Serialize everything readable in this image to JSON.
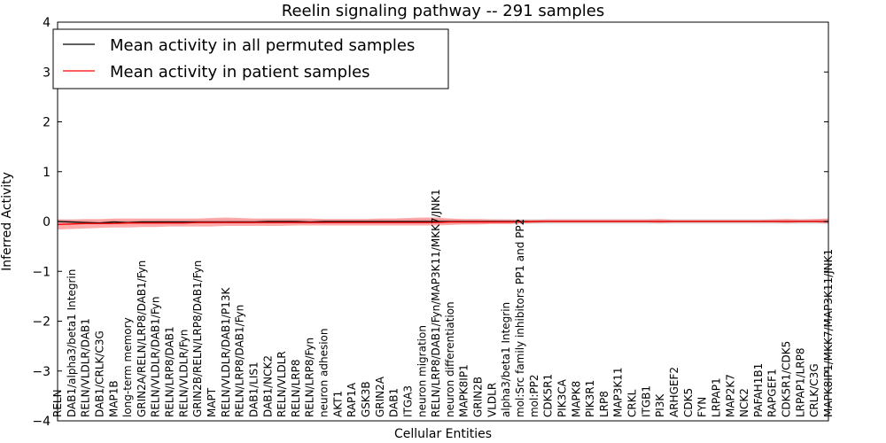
{
  "chart_data": {
    "type": "line",
    "title": "Reelin signaling pathway -- 291 samples",
    "xlabel": "Cellular Entities",
    "ylabel": "Inferred Activity",
    "ylim": [
      -4,
      4
    ],
    "yticks": [
      -4,
      -3,
      -2,
      -1,
      0,
      1,
      2,
      3,
      4
    ],
    "ytick_labels": [
      "−4",
      "−3",
      "−2",
      "−1",
      "0",
      "1",
      "2",
      "3",
      "4"
    ],
    "legend_position": "top-left",
    "categories": [
      "RELN",
      "DAB1/alpha3/beta1 Integrin",
      "RELN/VLDLR/DAB1",
      "DAB1/CRLK/C3G",
      "MAP1B",
      "long-term memory",
      "GRIN2A/RELN/LRP8/DAB1/Fyn",
      "RELN/VLDLR/DAB1/Fyn",
      "RELN/LRP8/DAB1",
      "RELN/VLDLR/Fyn",
      "GRIN2B/RELN/LRP8/DAB1/Fyn",
      "MAPT",
      "RELN/VLDLR/DAB1/P13K",
      "RELN/LRP8/DAB1/Fyn",
      "DAB1/LIS1",
      "DAB1/NCK2",
      "RELN/VLDLR",
      "RELN/LRP8",
      "RELN/LRP8/Fyn",
      "neuron adhesion",
      "AKT1",
      "RAP1A",
      "GSK3B",
      "GRIN2A",
      "DAB1",
      "ITGA3",
      "neuron migration",
      "RELN/LRP8/DAB1/Fyn/MAP3K11/MKK7/JNK1",
      "neuron differentiation",
      "MAPK8IP1",
      "GRIN2B",
      "VLDLR",
      "alpha3/beta1 Integrin",
      "mol:Src family inhibitors PP1 and PP2",
      "mol:PP2",
      "CDK5R1",
      "PIK3CA",
      "MAPK8",
      "PIK3R1",
      "LRP8",
      "MAP3K11",
      "CRKL",
      "ITGB1",
      "PI3K",
      "ARHGEF2",
      "CDK5",
      "FYN",
      "LRPAP1",
      "MAP2K7",
      "NCK2",
      "PAFAH1B1",
      "RAPGEF1",
      "CDK5R1/CDK5",
      "LRPAP1/LRP8",
      "CRLK/C3G",
      "MAPK8IP1/MKK7/MAP3K11/JNK1"
    ],
    "series": [
      {
        "name": "Mean activity in all permuted samples",
        "color": "#000000",
        "values": [
          0.0,
          -0.01,
          -0.02,
          -0.03,
          -0.01,
          -0.02,
          -0.01,
          -0.01,
          -0.01,
          -0.01,
          -0.01,
          -0.01,
          -0.01,
          -0.01,
          -0.01,
          0.0,
          0.0,
          0.0,
          -0.01,
          0.0,
          0.0,
          0.0,
          0.0,
          0.0,
          0.0,
          0.0,
          0.0,
          0.0,
          0.0,
          0.0,
          0.0,
          0.0,
          0.0,
          0.0,
          0.0,
          0.0,
          0.0,
          0.0,
          0.0,
          0.0,
          0.0,
          0.0,
          0.0,
          0.0,
          0.0,
          0.0,
          0.0,
          0.0,
          0.0,
          0.0,
          0.0,
          0.0,
          0.0,
          0.0,
          0.0,
          0.0
        ],
        "band_low": [
          -0.05,
          -0.05,
          -0.06,
          -0.06,
          -0.05,
          -0.05,
          -0.05,
          -0.05,
          -0.05,
          -0.05,
          -0.05,
          -0.05,
          -0.05,
          -0.05,
          -0.05,
          -0.05,
          -0.05,
          -0.05,
          -0.05,
          -0.05,
          -0.05,
          -0.05,
          -0.05,
          -0.05,
          -0.05,
          -0.05,
          -0.05,
          -0.05,
          -0.05,
          -0.05,
          -0.05,
          -0.05,
          -0.05,
          -0.05,
          -0.05,
          -0.05,
          -0.05,
          -0.05,
          -0.05,
          -0.05,
          -0.05,
          -0.05,
          -0.05,
          -0.05,
          -0.05,
          -0.05,
          -0.05,
          -0.05,
          -0.05,
          -0.05,
          -0.05,
          -0.05,
          -0.05,
          -0.05,
          -0.05,
          -0.05
        ],
        "band_high": [
          0.05,
          0.04,
          0.03,
          0.02,
          0.04,
          0.03,
          0.04,
          0.04,
          0.04,
          0.04,
          0.04,
          0.04,
          0.04,
          0.04,
          0.04,
          0.05,
          0.05,
          0.05,
          0.04,
          0.05,
          0.05,
          0.05,
          0.05,
          0.05,
          0.05,
          0.05,
          0.05,
          0.05,
          0.05,
          0.05,
          0.05,
          0.05,
          0.05,
          0.05,
          0.05,
          0.05,
          0.05,
          0.05,
          0.05,
          0.05,
          0.05,
          0.05,
          0.05,
          0.05,
          0.05,
          0.05,
          0.05,
          0.05,
          0.05,
          0.05,
          0.05,
          0.05,
          0.05,
          0.05,
          0.05,
          0.05
        ]
      },
      {
        "name": "Mean activity in patient samples",
        "color": "#ff0000",
        "values": [
          -0.06,
          -0.05,
          -0.04,
          -0.04,
          -0.04,
          -0.03,
          -0.03,
          -0.03,
          -0.03,
          -0.03,
          -0.02,
          -0.02,
          -0.02,
          -0.02,
          -0.02,
          -0.02,
          -0.02,
          -0.02,
          -0.02,
          -0.02,
          -0.02,
          -0.02,
          -0.02,
          -0.02,
          -0.02,
          -0.02,
          -0.02,
          -0.02,
          -0.01,
          -0.01,
          -0.01,
          -0.01,
          -0.01,
          -0.01,
          0.0,
          0.0,
          0.0,
          0.0,
          0.0,
          0.0,
          0.0,
          0.0,
          0.0,
          0.0,
          0.0,
          0.0,
          0.0,
          0.0,
          0.0,
          0.0,
          0.0,
          0.0,
          0.0,
          0.0,
          0.0,
          0.0
        ],
        "band_low": [
          -0.16,
          -0.15,
          -0.14,
          -0.13,
          -0.12,
          -0.12,
          -0.11,
          -0.11,
          -0.1,
          -0.1,
          -0.1,
          -0.1,
          -0.09,
          -0.09,
          -0.09,
          -0.09,
          -0.09,
          -0.08,
          -0.08,
          -0.08,
          -0.08,
          -0.08,
          -0.08,
          -0.08,
          -0.08,
          -0.08,
          -0.08,
          -0.08,
          -0.07,
          -0.06,
          -0.06,
          -0.05,
          -0.05,
          -0.04,
          -0.03,
          -0.02,
          -0.02,
          -0.02,
          -0.02,
          -0.02,
          -0.02,
          -0.02,
          -0.02,
          -0.03,
          -0.02,
          -0.02,
          -0.02,
          -0.02,
          -0.02,
          -0.02,
          -0.02,
          -0.02,
          -0.03,
          -0.02,
          -0.02,
          -0.04
        ],
        "band_high": [
          0.04,
          0.04,
          0.05,
          0.05,
          0.06,
          0.06,
          0.06,
          0.06,
          0.06,
          0.06,
          0.06,
          0.07,
          0.08,
          0.07,
          0.06,
          0.06,
          0.06,
          0.06,
          0.06,
          0.05,
          0.05,
          0.05,
          0.05,
          0.06,
          0.06,
          0.07,
          0.08,
          0.08,
          0.06,
          0.05,
          0.05,
          0.04,
          0.04,
          0.03,
          0.03,
          0.04,
          0.04,
          0.04,
          0.04,
          0.04,
          0.04,
          0.04,
          0.04,
          0.05,
          0.03,
          0.03,
          0.03,
          0.03,
          0.03,
          0.03,
          0.03,
          0.04,
          0.05,
          0.04,
          0.05,
          0.06
        ]
      }
    ]
  },
  "colors": {
    "permuted_band": "#c8c8c8",
    "patient_band": "#ff6666"
  }
}
